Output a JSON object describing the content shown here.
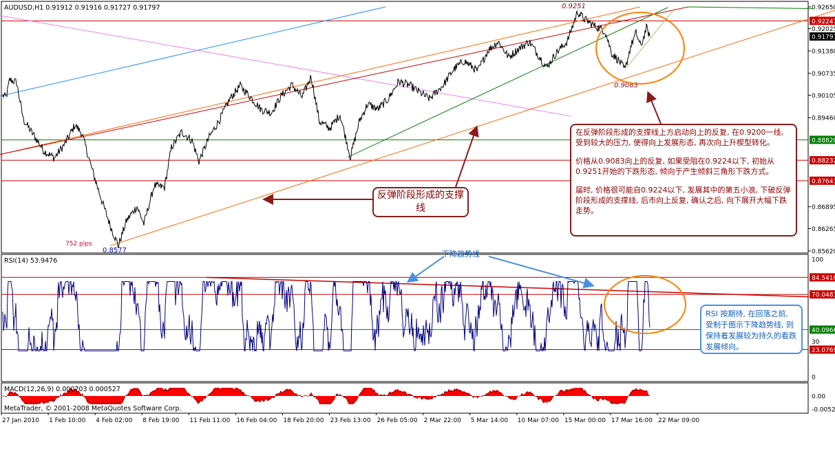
{
  "chart_data": [
    {
      "type": "line",
      "title": "AUDUSD,H1  0.91912 0.91916 0.91727 0.91797",
      "symbol": "AUDUSD,H1",
      "ohlc": {
        "open": "0.91912",
        "high": "0.91916",
        "low": "0.91727",
        "close": "0.91797"
      },
      "ylim": [
        0.8562,
        0.9265
      ],
      "y_ticks": [
        "0.92650",
        "0.92247",
        "0.92025",
        "0.91797",
        "0.91380",
        "0.90735",
        "0.90105",
        "0.89460",
        "0.88820",
        "0.88232",
        "0.87643",
        "0.86895",
        "0.86265",
        "0.85620"
      ],
      "highlighted_ticks": [
        {
          "label": "0.92247",
          "color": "#cc0000"
        },
        {
          "label": "0.91797",
          "color": "#000000"
        },
        {
          "label": "0.88820",
          "color": "#008000"
        },
        {
          "label": "0.88232",
          "color": "#cc0000"
        },
        {
          "label": "0.87643",
          "color": "#cc0000"
        }
      ],
      "x_labels": [
        "27 Jan 2010",
        "1 Feb 10:00",
        "4 Feb 02:00",
        "8 Feb 19:00",
        "11 Feb 11:00",
        "16 Feb 04:00",
        "18 Feb 20:00",
        "23 Feb 13:00",
        "26 Feb 05:00",
        "2 Mar 22:00",
        "5 Mar 14:00",
        "10 Mar 07:00",
        "15 Mar 00:00",
        "17 Mar 16:00",
        "22 Mar 09:00"
      ],
      "price_anchors": [
        {
          "x": 0,
          "y": 0.901
        },
        {
          "x": 5,
          "y": 0.9005
        },
        {
          "x": 10,
          "y": 0.9055
        },
        {
          "x": 20,
          "y": 0.9048
        },
        {
          "x": 30,
          "y": 0.894
        },
        {
          "x": 45,
          "y": 0.8895
        },
        {
          "x": 60,
          "y": 0.885
        },
        {
          "x": 75,
          "y": 0.883
        },
        {
          "x": 90,
          "y": 0.887
        },
        {
          "x": 105,
          "y": 0.8925
        },
        {
          "x": 115,
          "y": 0.89
        },
        {
          "x": 130,
          "y": 0.8795
        },
        {
          "x": 145,
          "y": 0.87
        },
        {
          "x": 158,
          "y": 0.8625
        },
        {
          "x": 168,
          "y": 0.8577
        },
        {
          "x": 180,
          "y": 0.865
        },
        {
          "x": 195,
          "y": 0.869
        },
        {
          "x": 205,
          "y": 0.864
        },
        {
          "x": 220,
          "y": 0.875
        },
        {
          "x": 235,
          "y": 0.8745
        },
        {
          "x": 245,
          "y": 0.886
        },
        {
          "x": 260,
          "y": 0.8905
        },
        {
          "x": 275,
          "y": 0.888
        },
        {
          "x": 285,
          "y": 0.882
        },
        {
          "x": 300,
          "y": 0.889
        },
        {
          "x": 315,
          "y": 0.894
        },
        {
          "x": 330,
          "y": 0.9
        },
        {
          "x": 345,
          "y": 0.9038
        },
        {
          "x": 360,
          "y": 0.9005
        },
        {
          "x": 375,
          "y": 0.897
        },
        {
          "x": 390,
          "y": 0.896
        },
        {
          "x": 405,
          "y": 0.901
        },
        {
          "x": 420,
          "y": 0.904
        },
        {
          "x": 435,
          "y": 0.9005
        },
        {
          "x": 448,
          "y": 0.9065
        },
        {
          "x": 460,
          "y": 0.8935
        },
        {
          "x": 475,
          "y": 0.8915
        },
        {
          "x": 490,
          "y": 0.8955
        },
        {
          "x": 505,
          "y": 0.8832
        },
        {
          "x": 518,
          "y": 0.8935
        },
        {
          "x": 530,
          "y": 0.8985
        },
        {
          "x": 545,
          "y": 0.897
        },
        {
          "x": 560,
          "y": 0.9
        },
        {
          "x": 575,
          "y": 0.905
        },
        {
          "x": 590,
          "y": 0.904
        },
        {
          "x": 605,
          "y": 0.902
        },
        {
          "x": 620,
          "y": 0.9
        },
        {
          "x": 640,
          "y": 0.904
        },
        {
          "x": 655,
          "y": 0.9085
        },
        {
          "x": 670,
          "y": 0.911
        },
        {
          "x": 690,
          "y": 0.908
        },
        {
          "x": 705,
          "y": 0.914
        },
        {
          "x": 720,
          "y": 0.9165
        },
        {
          "x": 735,
          "y": 0.912
        },
        {
          "x": 750,
          "y": 0.9145
        },
        {
          "x": 765,
          "y": 0.9165
        },
        {
          "x": 780,
          "y": 0.912
        },
        {
          "x": 790,
          "y": 0.909
        },
        {
          "x": 805,
          "y": 0.9135
        },
        {
          "x": 820,
          "y": 0.9165
        },
        {
          "x": 835,
          "y": 0.9251
        },
        {
          "x": 845,
          "y": 0.923
        },
        {
          "x": 860,
          "y": 0.921
        },
        {
          "x": 875,
          "y": 0.9195
        },
        {
          "x": 885,
          "y": 0.913
        },
        {
          "x": 895,
          "y": 0.911
        },
        {
          "x": 904,
          "y": 0.9083
        },
        {
          "x": 912,
          "y": 0.915
        },
        {
          "x": 920,
          "y": 0.919
        },
        {
          "x": 927,
          "y": 0.915
        },
        {
          "x": 935,
          "y": 0.9205
        },
        {
          "x": 940,
          "y": 0.918
        }
      ],
      "horizontal_levels": [
        {
          "value": 0.92247,
          "color": "#cc0000"
        },
        {
          "value": 0.8882,
          "color": "#008000"
        },
        {
          "value": 0.88232,
          "color": "#cc0000"
        },
        {
          "value": 0.87643,
          "color": "#cc0000"
        }
      ],
      "trend_lines": [
        {
          "from": [
            0,
            0.9008
          ],
          "to": [
            560,
            0.9265
          ],
          "color": "#1e90ff"
        },
        {
          "from": [
            0,
            0.924
          ],
          "to": [
            830,
            0.895
          ],
          "color": "#ee82ee"
        },
        {
          "from": [
            0,
            0.884
          ],
          "to": [
            930,
            0.9265
          ],
          "color": "#ff6600"
        },
        {
          "from": [
            160,
            0.8577
          ],
          "to": [
            1213,
            0.9255
          ],
          "color": "#ff6600"
        },
        {
          "from": [
            0,
            0.884
          ],
          "to": [
            1000,
            0.9265
          ],
          "color": "#cc0000"
        },
        {
          "from": [
            505,
            0.8832
          ],
          "to": [
            970,
            0.9263
          ],
          "color": "#008000"
        },
        {
          "from": [
            910,
            0.909
          ],
          "to": [
            980,
            0.926
          ],
          "color": "#99cc66"
        },
        {
          "from": [
            1000,
            0.9265
          ],
          "to": [
            1180,
            0.926
          ],
          "color": "#008000"
        }
      ],
      "annotations": [
        "0.9251",
        "0.9083",
        "752  pips",
        "0.8577"
      ],
      "ellipse_center": [
        930,
        0.9165
      ]
    },
    {
      "type": "line",
      "title": "RSI(14) 53.9476",
      "ylim": [
        0,
        100
      ],
      "y_ticks": [
        "100",
        "84.5410",
        "70.0483",
        "40.0966",
        "30",
        "23.0769",
        "0"
      ],
      "highlighted_ticks": [
        {
          "label": "84.5410",
          "color": "#cc0000"
        },
        {
          "label": "70.0483",
          "color": "#cc0000"
        },
        {
          "label": "40.0966",
          "color": "#008000"
        },
        {
          "label": "23.0769",
          "color": "#cc0000"
        }
      ],
      "levels": [
        {
          "value": 84.541,
          "color": "#cc0000"
        },
        {
          "value": 70.0483,
          "color": "#cc0000"
        },
        {
          "value": 40.0966,
          "color": "#008000"
        },
        {
          "value": 23.0769,
          "color": "#cc0000"
        }
      ],
      "trend_line": {
        "from": [
          300,
          84.5
        ],
        "to": [
          1175,
          68.0
        ],
        "color": "#cc0000"
      },
      "label": "下降趋势线",
      "ellipse_center": [
        937,
        62
      ]
    },
    {
      "type": "bar",
      "title": "MACD(12,26,9) 0.000703 0.000527",
      "y_ticks": [
        "0.00",
        "-0.00522"
      ],
      "footer": "MetaTrader, © 2001-2008 MetaQuotes Software Corp."
    }
  ],
  "notes": {
    "main": [
      "在反弹阶段形成的支撑线上方启动向上的反复, 在0.9200一线, 受到较大的压力, 使得向上发展形态, 再次向上升楔型转化。",
      "价格从0.9083向上的反复, 如果受阻在0.9224以下, 初始从0.9251开始的下跌形态, 倾向于产生倾斜三角形下跌方式。",
      "届时, 价格很可能自0.9224以下, 发展其中的第五小浪, 下破反弹阶段形成的支撑线, 后市向上反复, 确认之后, 向下展开大幅下跌走势。"
    ],
    "support": "反弹阶段形成的支撑线",
    "rsi": "RSI 按期待, 在回落之前, 受制于图示下降趋势线, 则保持着发展较为持久的看跌发展倾向。"
  },
  "colors": {
    "price": "#000000",
    "rsi": "#000080",
    "macd_hist": "#ff0000",
    "grid": "#000000",
    "orange": "#ff7f00",
    "blue_arrow": "#4a90e2",
    "dark_red": "#8b1a1a"
  }
}
